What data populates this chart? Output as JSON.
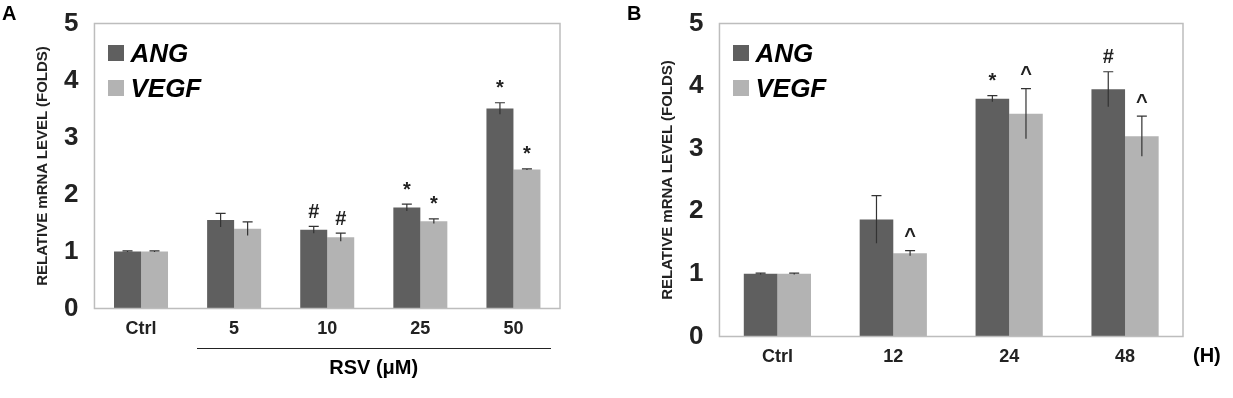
{
  "chart_data": [
    {
      "type": "bar",
      "title": "A",
      "xlabel": "RSV (μM)",
      "ylabel": "RELATIVE mRNA LEVEL (FOLDS)",
      "categories": [
        "Ctrl",
        "5",
        "10",
        "25",
        "50"
      ],
      "series": [
        {
          "name": "ANG",
          "color": "#5f5f5f",
          "values": [
            1.0,
            1.55,
            1.38,
            1.77,
            3.51
          ],
          "errors": [
            0.01,
            0.12,
            0.06,
            0.06,
            0.1
          ]
        },
        {
          "name": "VEGF",
          "color": "#b3b3b3",
          "values": [
            1.0,
            1.4,
            1.25,
            1.53,
            2.44
          ],
          "errors": [
            0.01,
            0.12,
            0.07,
            0.04,
            0.01
          ]
        }
      ],
      "ylim": [
        0,
        5
      ],
      "yticks": [
        0,
        1,
        2,
        3,
        4,
        5
      ],
      "grid": false,
      "legend": "top left",
      "annotations": [
        {
          "text": "#",
          "x": "10",
          "y": 1.38
        },
        {
          "text": "#",
          "x": "10",
          "y": 1.25
        },
        {
          "text": "*",
          "x": "25",
          "y": 1.77
        },
        {
          "text": "*",
          "x": "25",
          "y": 1.53
        },
        {
          "text": "*",
          "x": "50",
          "y": 3.51
        },
        {
          "text": "*",
          "x": "50",
          "y": 2.44
        }
      ]
    },
    {
      "type": "bar",
      "title": "B",
      "xlabel": "(H)",
      "ylabel": "RELATIVE mRNA LEVEL (FOLDS)",
      "categories": [
        "Ctrl",
        "12",
        "24",
        "48"
      ],
      "series": [
        {
          "name": "ANG",
          "color": "#5f5f5f",
          "values": [
            1.0,
            1.87,
            3.8,
            3.95
          ],
          "errors": [
            0.01,
            0.38,
            0.05,
            0.28
          ]
        },
        {
          "name": "VEGF",
          "color": "#b3b3b3",
          "values": [
            1.0,
            1.33,
            3.56,
            3.2
          ],
          "errors": [
            0.01,
            0.04,
            0.4,
            0.32
          ]
        }
      ],
      "ylim": [
        0,
        5
      ],
      "yticks": [
        0,
        1,
        2,
        3,
        4,
        5
      ],
      "grid": false,
      "legend": "top left",
      "annotations": [
        {
          "text": "^",
          "x": "12",
          "y": 1.33
        },
        {
          "text": "*",
          "x": "24",
          "y": 3.8
        },
        {
          "text": "^",
          "x": "24",
          "y": 3.56
        },
        {
          "text": "#",
          "x": "48",
          "y": 3.95
        },
        {
          "text": "^",
          "x": "48",
          "y": 3.2
        }
      ]
    }
  ]
}
